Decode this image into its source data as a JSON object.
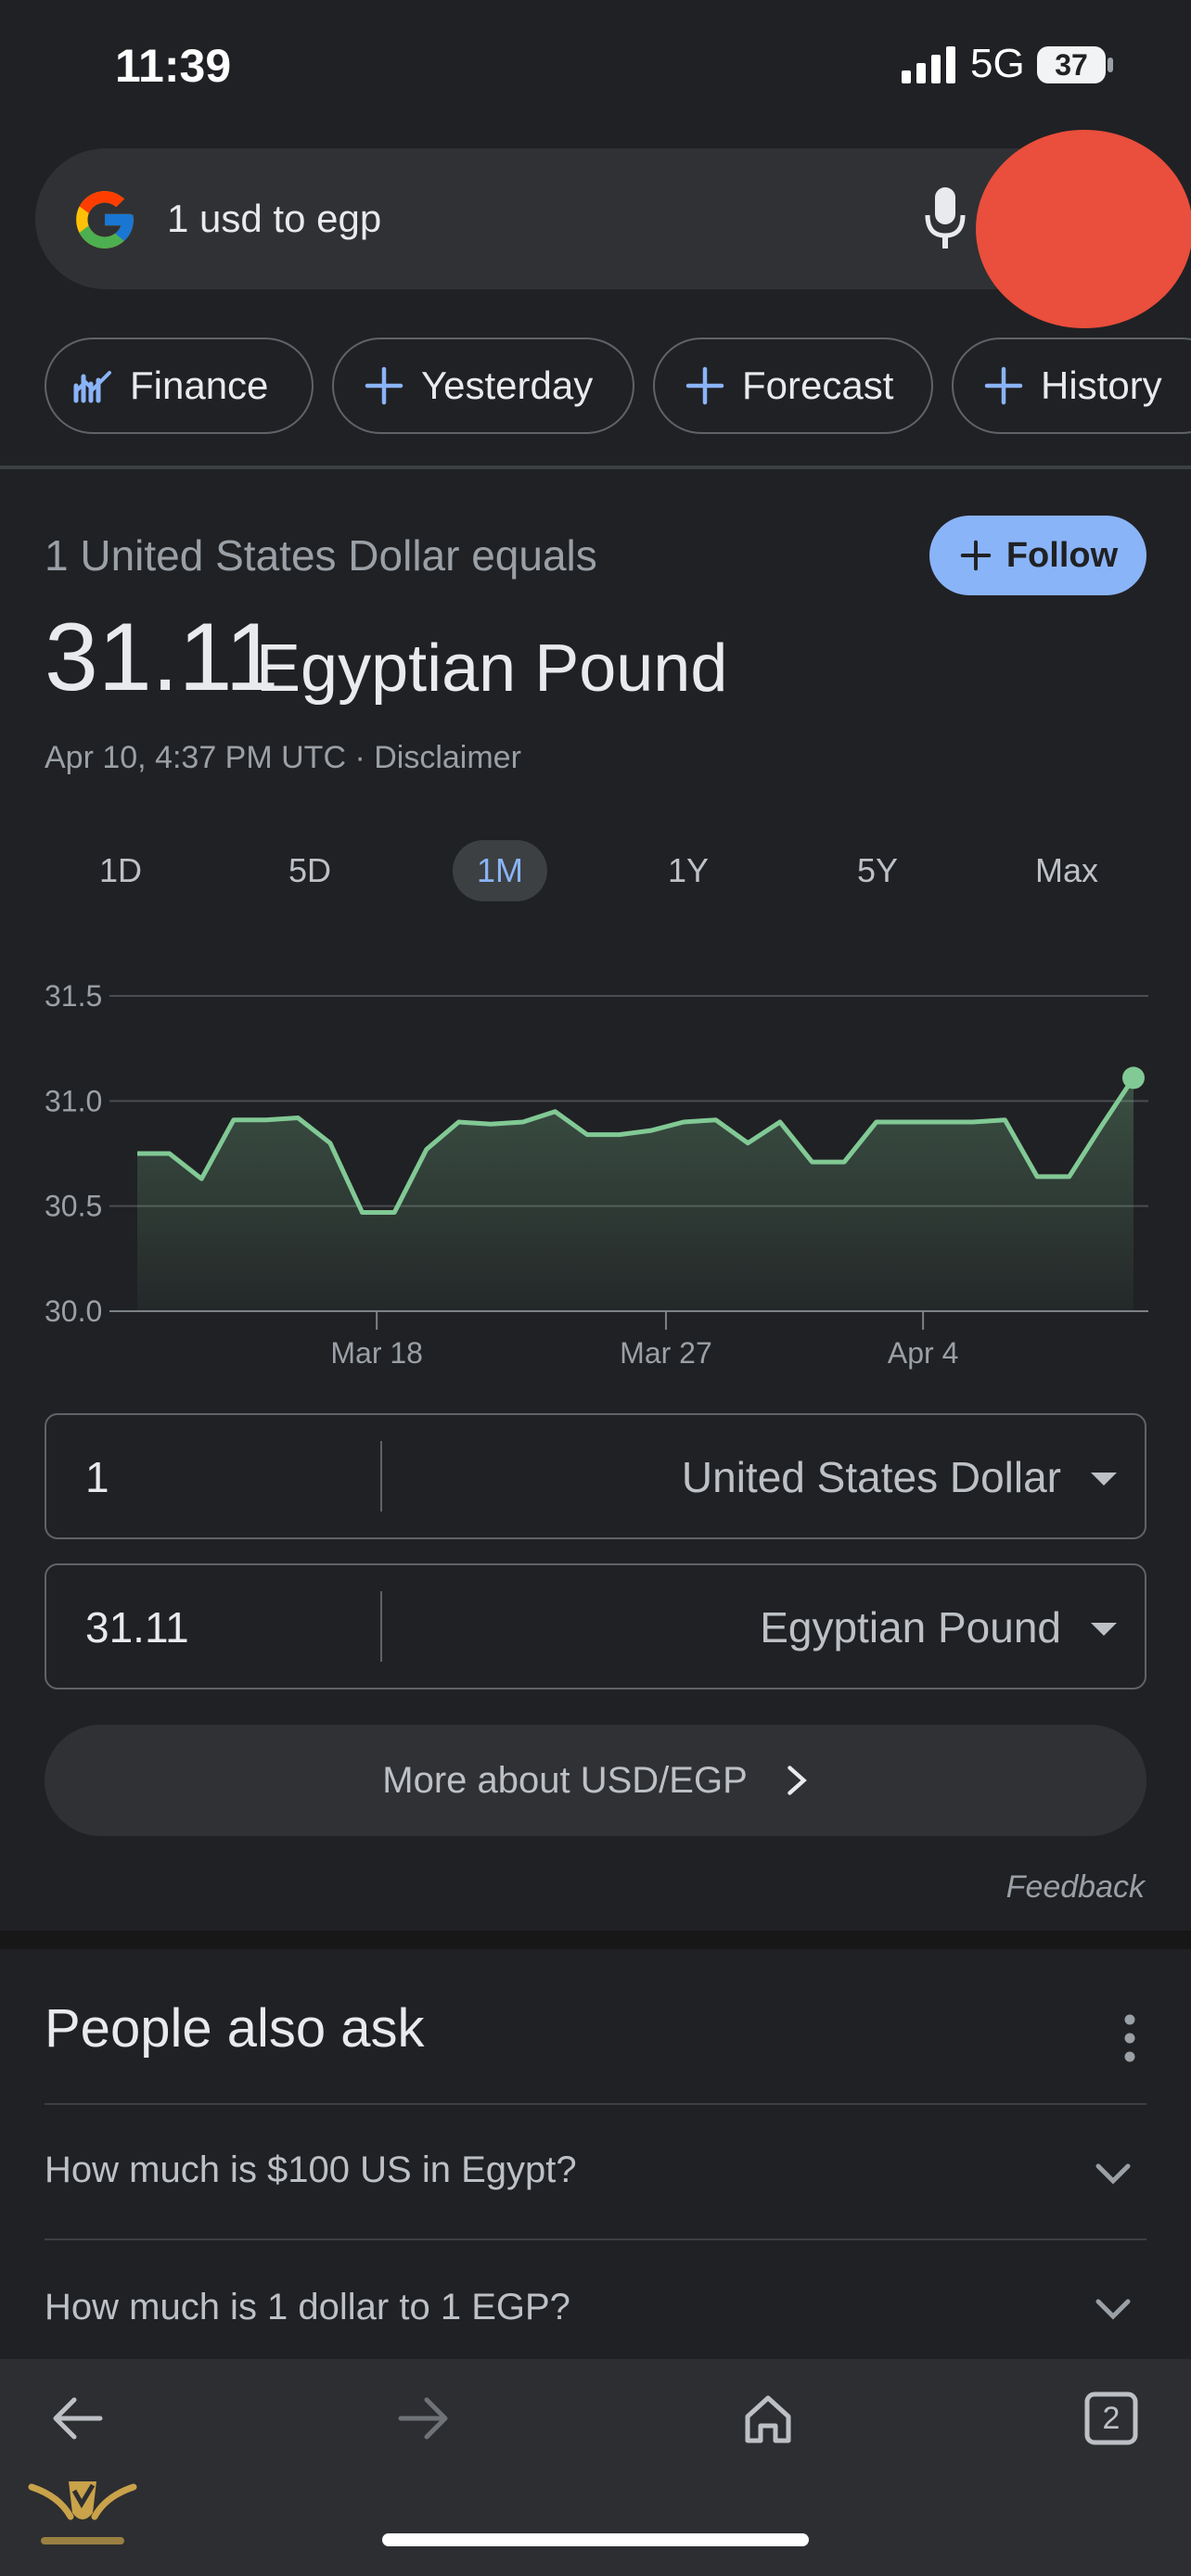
{
  "status": {
    "time": "11:39",
    "network": "5G",
    "battery": "37"
  },
  "search": {
    "query": "1 usd to egp"
  },
  "chips": [
    "Finance",
    "Yesterday",
    "Forecast",
    "History"
  ],
  "converter": {
    "equals_text": "1 United States Dollar equals",
    "follow_label": "Follow",
    "rate": "31.11",
    "currency": "Egyptian Pound",
    "timestamp": "Apr 10, 4:37 PM UTC · Disclaimer",
    "ranges": [
      "1D",
      "5D",
      "1M",
      "1Y",
      "5Y",
      "Max"
    ],
    "active_range": "1M",
    "from_amount": "1",
    "from_currency": "United States Dollar",
    "to_amount": "31.11",
    "to_currency": "Egyptian Pound",
    "more_label": "More about USD/EGP",
    "feedback": "Feedback"
  },
  "chart_data": {
    "type": "area",
    "title": "",
    "xlabel": "",
    "ylabel": "",
    "ylim": [
      30.0,
      31.5
    ],
    "y_ticks": [
      "31.5",
      "31.0",
      "30.5",
      "30.0"
    ],
    "x_ticks": [
      "Mar 18",
      "Mar 27",
      "Apr 4"
    ],
    "grid": true,
    "line_color": "#81c995",
    "series": [
      {
        "values": [
          30.75,
          30.75,
          30.63,
          30.91,
          30.91,
          30.92,
          30.8,
          30.47,
          30.47,
          30.77,
          30.9,
          30.89,
          30.9,
          30.95,
          30.84,
          30.84,
          30.86,
          30.9,
          30.91,
          30.8,
          30.9,
          30.71,
          30.71,
          30.9,
          30.9,
          30.9,
          30.9,
          30.91,
          30.64,
          30.64,
          30.88,
          31.11
        ]
      }
    ]
  },
  "people_also_ask": {
    "title": "People also ask",
    "questions": [
      "How much is $100 US in Egypt?",
      "How much is 1 dollar to 1 EGP?"
    ]
  },
  "bottom_nav": {
    "tab_count": "2"
  },
  "colors": {
    "background": "#202124",
    "accent": "#8ab4f8",
    "chart_line": "#81c995",
    "blob": "#ea4e3c"
  }
}
